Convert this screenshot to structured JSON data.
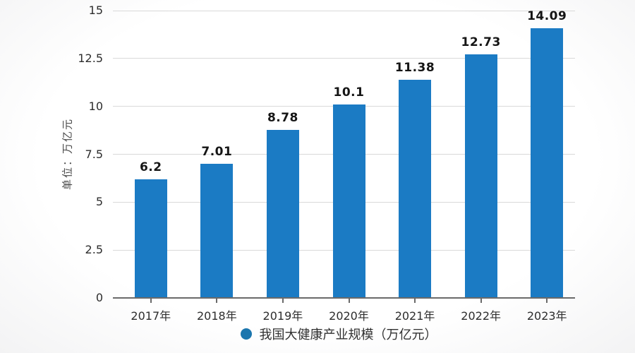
{
  "chart_data": {
    "type": "bar",
    "categories": [
      "2017年",
      "2018年",
      "2019年",
      "2020年",
      "2021年",
      "2022年",
      "2023年"
    ],
    "values": [
      6.2,
      7.01,
      8.78,
      10.1,
      11.38,
      12.73,
      14.09
    ],
    "value_labels": [
      "6.2",
      "7.01",
      "8.78",
      "10.1",
      "11.38",
      "12.73",
      "14.09"
    ],
    "title": "",
    "xlabel": "",
    "ylabel": "单位：万亿元",
    "ylim": [
      0,
      15
    ],
    "yticks": [
      0,
      2.5,
      5,
      7.5,
      10,
      12.5,
      15
    ],
    "grid": "horizontal",
    "legend": {
      "label": "我国大健康产业规模（万亿元）",
      "position": "bottom",
      "marker": "circle"
    }
  },
  "colors": {
    "bar": "#1b7bc4",
    "legend_dot": "#1b76ae",
    "gridline": "#d9d9d9",
    "axis_line": "#6a6a6a",
    "tick_text": "#2d2d2d",
    "value_label_text": "#151515",
    "unit_text": "#4a4a4a",
    "legend_text": "#303030",
    "background": "#ffffff"
  }
}
